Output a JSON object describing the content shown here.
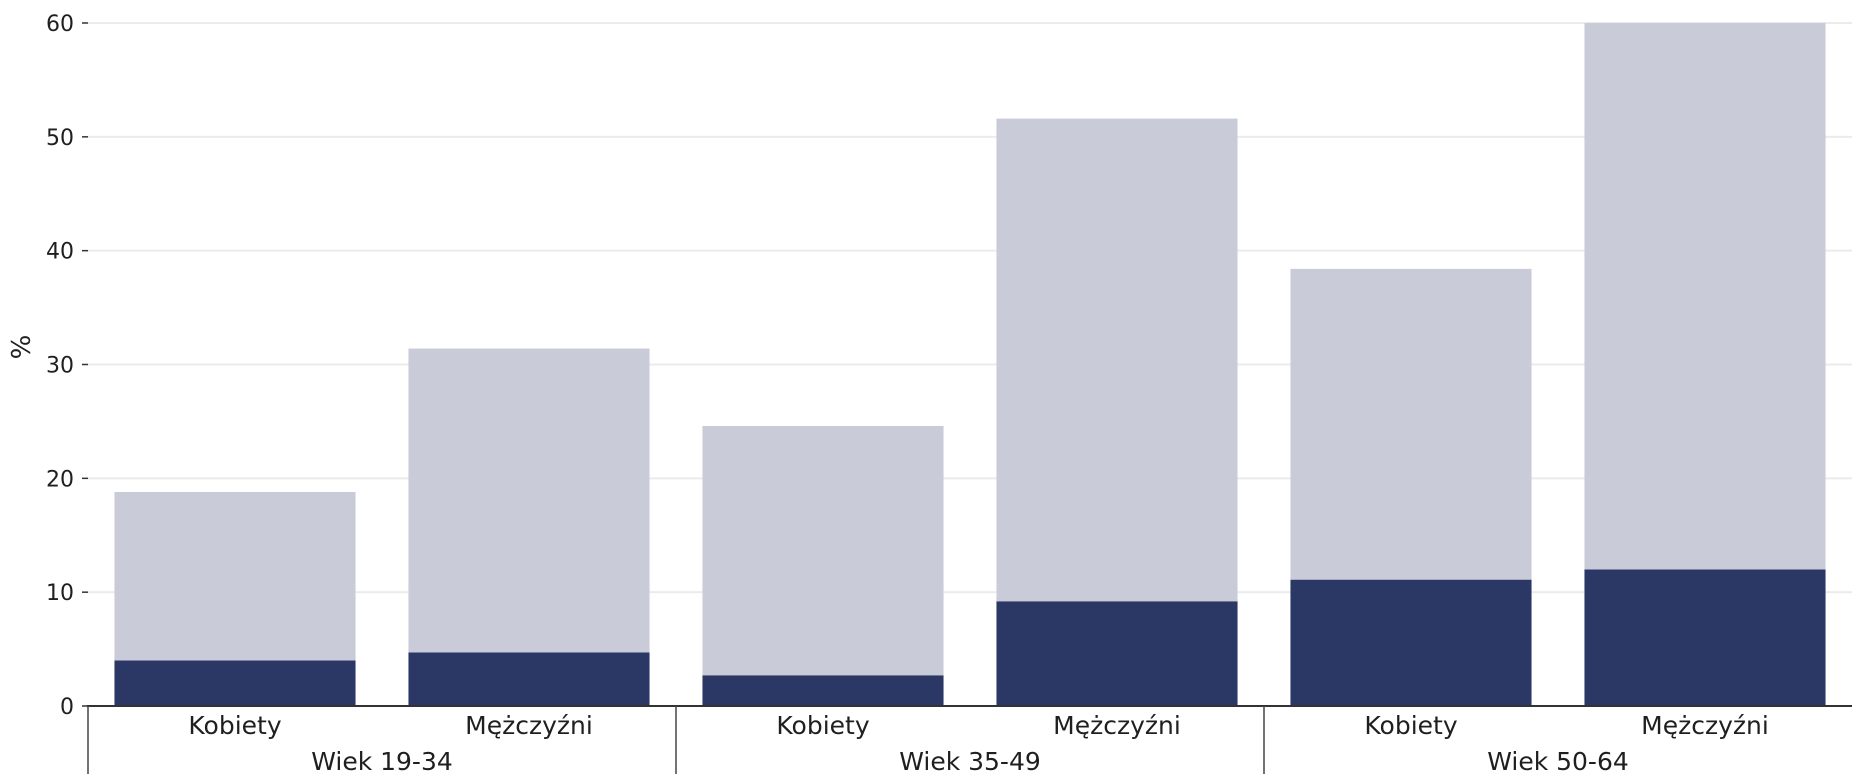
{
  "chart_data": {
    "type": "bar",
    "stacked": true,
    "title": "",
    "xlabel": "",
    "ylabel": "%",
    "ylim": [
      0,
      60
    ],
    "yticks": [
      0,
      10,
      20,
      30,
      40,
      50,
      60
    ],
    "grid": true,
    "categories": [
      "Kobiety",
      "Mężczyźni",
      "Kobiety",
      "Mężczyźni",
      "Kobiety",
      "Mężczyźni"
    ],
    "groups": [
      {
        "label": "Wiek 19-34",
        "categories": [
          0,
          1
        ]
      },
      {
        "label": "Wiek 35-49",
        "categories": [
          2,
          3
        ]
      },
      {
        "label": "Wiek 50-64",
        "categories": [
          4,
          5
        ]
      }
    ],
    "series": [
      {
        "values": [
          4.0,
          4.7,
          2.7,
          9.2,
          11.1,
          12.0
        ],
        "color": "#2b3765"
      },
      {
        "values": [
          14.8,
          26.7,
          21.9,
          42.4,
          27.3,
          48.0
        ],
        "color": "#c9cbd8"
      }
    ],
    "totals": [
      18.8,
      31.4,
      24.6,
      51.6,
      38.4,
      60.0
    ]
  }
}
